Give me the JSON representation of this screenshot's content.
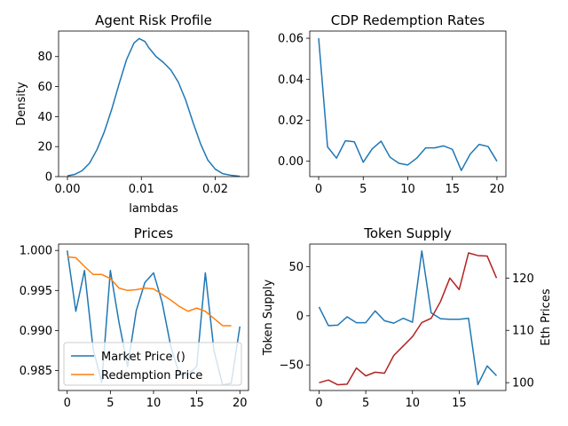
{
  "colors": {
    "blue": "#1f77b4",
    "orange": "#ff7f0e",
    "red": "#b22222",
    "axis": "#000000"
  },
  "chart_data": [
    {
      "type": "line",
      "title": "Agent Risk Profile",
      "xlabel": "lambdas",
      "ylabel": "Density",
      "xlim": [
        -0.0012,
        0.0245
      ],
      "ylim": [
        0,
        97
      ],
      "xticks": [
        0.0,
        0.01,
        0.02
      ],
      "xtick_labels": [
        "0.00",
        "0.01",
        "0.02"
      ],
      "yticks": [
        0,
        20,
        40,
        60,
        80
      ],
      "ytick_labels": [
        "0",
        "20",
        "40",
        "60",
        "80"
      ],
      "grid": false,
      "series": [
        {
          "color": "#1f77b4",
          "x": [
            0.0,
            0.001,
            0.002,
            0.003,
            0.004,
            0.005,
            0.006,
            0.007,
            0.008,
            0.009,
            0.0097,
            0.0105,
            0.011,
            0.012,
            0.013,
            0.014,
            0.015,
            0.016,
            0.017,
            0.018,
            0.019,
            0.02,
            0.021,
            0.022,
            0.0233
          ],
          "y": [
            0.5,
            1.5,
            4,
            9,
            18,
            30,
            45,
            62,
            78,
            89,
            92,
            90,
            86,
            80,
            76,
            71,
            63,
            51,
            36,
            22,
            11,
            5,
            2,
            1,
            0.2
          ]
        }
      ]
    },
    {
      "type": "line",
      "title": "CDP Redemption Rates",
      "xlabel": "",
      "ylabel": "",
      "xlim": [
        -1,
        21
      ],
      "ylim": [
        -0.0075,
        0.0635
      ],
      "xticks": [
        0,
        5,
        10,
        15,
        20
      ],
      "xtick_labels": [
        "0",
        "5",
        "10",
        "15",
        "20"
      ],
      "yticks": [
        0.0,
        0.02,
        0.04,
        0.06
      ],
      "ytick_labels": [
        "0.00",
        "0.02",
        "0.04",
        "0.06"
      ],
      "grid": false,
      "series": [
        {
          "color": "#1f77b4",
          "x": [
            0,
            1,
            2,
            3,
            4,
            5,
            6,
            7,
            8,
            9,
            10,
            11,
            12,
            13,
            14,
            15,
            16,
            17,
            18,
            19,
            20
          ],
          "y": [
            0.06,
            0.007,
            0.0015,
            0.01,
            0.0095,
            -0.0005,
            0.006,
            0.0098,
            0.002,
            -0.001,
            -0.0018,
            0.0015,
            0.0065,
            0.0065,
            0.0075,
            0.0058,
            -0.0045,
            0.0035,
            0.0082,
            0.0072,
            0.0
          ]
        }
      ]
    },
    {
      "type": "line",
      "title": "Prices",
      "xlabel": "",
      "ylabel": "",
      "xlim": [
        -1,
        21
      ],
      "ylim": [
        0.9825,
        1.0008
      ],
      "xticks": [
        0,
        5,
        10,
        15,
        20
      ],
      "xtick_labels": [
        "0",
        "5",
        "10",
        "15",
        "20"
      ],
      "yticks": [
        0.985,
        0.99,
        0.995,
        1.0
      ],
      "ytick_labels": [
        "0.985",
        "0.990",
        "0.995",
        "1.000"
      ],
      "grid": false,
      "legend_position": "lower-left",
      "legend": [
        "Market Price ()",
        "Redemption Price"
      ],
      "series": [
        {
          "name": "Market Price ()",
          "color": "#1f77b4",
          "x": [
            0,
            1,
            2,
            3,
            4,
            5,
            6,
            7,
            8,
            9,
            10,
            11,
            12,
            13,
            14,
            15,
            16,
            17,
            18,
            19,
            20
          ],
          "y": [
            1.0,
            0.9924,
            0.9975,
            0.9877,
            0.9835,
            0.9975,
            0.991,
            0.9855,
            0.9925,
            0.996,
            0.9972,
            0.9935,
            0.988,
            0.9845,
            0.9845,
            0.9855,
            0.9972,
            0.9875,
            0.9832,
            0.9834,
            0.9905
          ]
        },
        {
          "name": "Redemption Price",
          "color": "#ff7f0e",
          "x": [
            0,
            1,
            2,
            3,
            4,
            5,
            6,
            7,
            8,
            9,
            10,
            11,
            12,
            13,
            14,
            15,
            16,
            17,
            18,
            19
          ],
          "y": [
            0.9992,
            0.9991,
            0.998,
            0.997,
            0.997,
            0.9965,
            0.9953,
            0.995,
            0.9951,
            0.9953,
            0.9952,
            0.9945,
            0.9938,
            0.993,
            0.9924,
            0.9928,
            0.9924,
            0.9915,
            0.9906,
            0.9906
          ]
        }
      ]
    },
    {
      "type": "line",
      "title": "Token Supply",
      "xlabel": "",
      "ylabel": "Token Supply",
      "ylabel_right": "Eth Prices",
      "xlim": [
        -1,
        20
      ],
      "ylim": [
        -76,
        73
      ],
      "ylim_right": [
        98.5,
        126.5
      ],
      "xticks": [
        0,
        5,
        10,
        15
      ],
      "xtick_labels": [
        "0",
        "5",
        "10",
        "15"
      ],
      "yticks": [
        -50,
        0,
        50
      ],
      "ytick_labels": [
        "−50",
        "0",
        "50"
      ],
      "yticks_right": [
        100,
        110,
        120
      ],
      "ytick_labels_right": [
        "100",
        "110",
        "120"
      ],
      "grid": false,
      "series": [
        {
          "axis": "left",
          "color": "#1f77b4",
          "x": [
            0,
            1,
            2,
            3,
            4,
            5,
            6,
            7,
            8,
            9,
            10,
            11,
            12,
            13,
            14,
            15,
            16,
            17,
            18,
            19
          ],
          "y": [
            9,
            -10,
            -9.5,
            -1,
            -7,
            -7,
            5,
            -5,
            -7.5,
            -2.5,
            -6.5,
            66,
            3,
            -3,
            -3.5,
            -3.5,
            -2.5,
            -70,
            -51,
            -61
          ]
        },
        {
          "axis": "right",
          "color": "#b22222",
          "x": [
            0,
            1,
            2,
            3,
            4,
            5,
            6,
            7,
            8,
            9,
            10,
            11,
            12,
            13,
            14,
            15,
            16,
            17,
            18,
            19
          ],
          "y": [
            100.0,
            100.5,
            99.6,
            99.7,
            102.8,
            101.3,
            102.0,
            101.8,
            105.2,
            107.0,
            108.8,
            111.5,
            112.3,
            115.5,
            120.0,
            117.8,
            124.8,
            124.3,
            124.2,
            120.0
          ]
        }
      ]
    }
  ]
}
